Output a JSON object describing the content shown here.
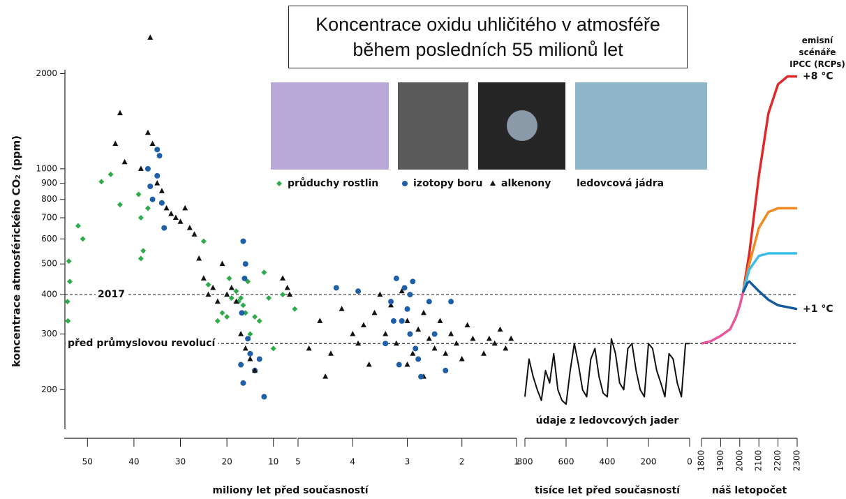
{
  "chart_data": [
    {
      "type": "scatter",
      "title": "Koncentrace oxidu uhličitého v atmosféře během posledních 55 milionů let",
      "y_label": "koncentrace atmosférického CO₂ (ppm)",
      "x_label": "miliony let před současností",
      "log_scale": true,
      "ylim": [
        150,
        3250
      ],
      "yticks": [
        200,
        300,
        400,
        500,
        600,
        700,
        800,
        900,
        1000,
        2000
      ],
      "xlim": [
        55,
        5
      ],
      "xticks": [
        50,
        40,
        30,
        20,
        10
      ],
      "reference_lines": [
        {
          "value": 400,
          "label": "2017"
        },
        {
          "value": 280,
          "label": "před průmyslovou revolucí"
        }
      ],
      "series": [
        {
          "name": "průduchy rostlin",
          "color": "#2eaa4a",
          "marker": "diamond",
          "x": [
            54.3,
            54.2,
            54,
            53.8,
            52,
            51,
            47,
            45,
            43,
            39,
            38.5,
            38.5,
            38,
            37,
            36,
            25,
            24,
            22,
            21,
            20,
            19.5,
            19,
            18,
            17.5,
            17,
            16.5,
            16,
            15.5,
            15,
            14,
            13,
            12,
            11,
            10,
            8,
            5.4
          ],
          "values": [
            380,
            330,
            510,
            440,
            660,
            600,
            910,
            960,
            770,
            830,
            700,
            520,
            550,
            750,
            800,
            590,
            430,
            330,
            350,
            340,
            450,
            390,
            410,
            380,
            390,
            370,
            350,
            440,
            300,
            340,
            330,
            470,
            390,
            270,
            400,
            360
          ]
        },
        {
          "name": "izotopy boru",
          "color": "#1f5fa8",
          "marker": "circle",
          "x": [
            36.5,
            35,
            34.5,
            35,
            34,
            33.5,
            36,
            37,
            16.5,
            16,
            16.2,
            16.8,
            17,
            16.5,
            15.5,
            15,
            14,
            13,
            12
          ],
          "values": [
            880,
            1150,
            1100,
            950,
            780,
            650,
            800,
            1000,
            590,
            500,
            450,
            350,
            240,
            210,
            290,
            260,
            230,
            250,
            190
          ]
        },
        {
          "name": "alkenony",
          "color": "#111111",
          "marker": "triangle",
          "x": [
            36.5,
            43,
            44,
            42,
            38.5,
            37,
            36,
            35,
            34,
            33,
            32,
            31,
            30,
            29,
            28,
            27,
            26,
            25,
            24,
            23,
            22,
            21,
            20,
            19,
            18,
            17,
            16,
            15,
            14,
            8,
            7,
            6.5
          ],
          "values": [
            2600,
            1500,
            1200,
            1050,
            1000,
            1300,
            1200,
            900,
            850,
            750,
            720,
            700,
            680,
            750,
            650,
            620,
            520,
            450,
            400,
            420,
            380,
            500,
            400,
            420,
            380,
            300,
            270,
            250,
            230,
            450,
            420,
            400
          ]
        }
      ]
    },
    {
      "type": "scatter",
      "xlim": [
        5,
        1
      ],
      "xticks": [
        5,
        4,
        3,
        2,
        1
      ],
      "series": [
        {
          "color": "#111111",
          "marker": "triangle",
          "x": [
            4.6,
            4.4,
            4.2,
            4.0,
            3.9,
            3.8,
            3.7,
            3.6,
            3.5,
            3.4,
            3.3,
            3.2,
            3.1,
            3.0,
            2.9,
            2.8,
            2.7,
            2.6,
            2.5,
            2.4,
            2.3,
            2.2,
            2.1,
            2.0,
            1.9,
            1.8,
            1.6,
            1.5,
            1.4,
            1.3,
            1.2,
            1.1,
            4.8,
            4.5,
            3.0,
            2.7
          ],
          "values": [
            330,
            260,
            360,
            300,
            280,
            320,
            240,
            350,
            400,
            300,
            370,
            280,
            410,
            330,
            260,
            310,
            350,
            290,
            270,
            330,
            260,
            300,
            280,
            250,
            320,
            290,
            260,
            290,
            280,
            310,
            270,
            290,
            270,
            220,
            240,
            220
          ]
        },
        {
          "color": "#1f5fa8",
          "marker": "circle",
          "x": [
            4.3,
            3.9,
            3.3,
            3.2,
            3.1,
            3.05,
            3.0,
            2.95,
            2.9,
            2.85,
            2.8,
            2.6,
            2.5,
            2.3,
            2.2,
            3.4,
            3.15,
            2.75,
            3.25,
            2.95
          ],
          "values": [
            420,
            410,
            380,
            450,
            330,
            420,
            360,
            300,
            440,
            270,
            250,
            380,
            300,
            230,
            380,
            280,
            240,
            220,
            330,
            400
          ]
        }
      ]
    },
    {
      "type": "line",
      "x_label": "tisíce let před současností",
      "annotation": "údaje z ledovcových jader",
      "xlim": [
        800,
        0
      ],
      "xticks": [
        800,
        600,
        400,
        200,
        0
      ],
      "series": [
        {
          "name": "ledovcová jádra",
          "color": "#111111",
          "x": [
            800,
            780,
            760,
            740,
            720,
            700,
            680,
            660,
            640,
            620,
            600,
            580,
            560,
            540,
            520,
            500,
            480,
            460,
            440,
            420,
            400,
            380,
            360,
            340,
            320,
            300,
            280,
            260,
            240,
            220,
            200,
            180,
            160,
            140,
            120,
            100,
            80,
            60,
            40,
            20,
            0
          ],
          "values": [
            190,
            250,
            220,
            200,
            185,
            230,
            210,
            260,
            200,
            185,
            180,
            230,
            280,
            240,
            200,
            190,
            250,
            270,
            220,
            195,
            190,
            290,
            260,
            210,
            200,
            270,
            280,
            230,
            200,
            190,
            280,
            270,
            230,
            210,
            190,
            260,
            250,
            210,
            190,
            280,
            280
          ]
        }
      ]
    },
    {
      "type": "line",
      "title": "emisní scénáře IPCC (RCPs)",
      "x_label": "náš letopočet",
      "xlim": [
        1800,
        2300
      ],
      "xticks": [
        1800,
        1900,
        2000,
        2100,
        2200,
        2300
      ],
      "series": [
        {
          "color": "#e8559a",
          "x": [
            1800,
            1850,
            1900,
            1950,
            1980,
            2000,
            2017
          ],
          "values": [
            280,
            285,
            296,
            311,
            339,
            369,
            406
          ]
        },
        {
          "color": "#e02a2a",
          "end_label": "+8 °C",
          "x": [
            2017,
            2050,
            2100,
            2150,
            2200,
            2250,
            2300
          ],
          "values": [
            406,
            540,
            950,
            1500,
            1850,
            1960,
            1960
          ]
        },
        {
          "color": "#f08a1e",
          "x": [
            2017,
            2050,
            2100,
            2150,
            2200,
            2250,
            2300
          ],
          "values": [
            406,
            500,
            650,
            730,
            750,
            750,
            750
          ]
        },
        {
          "color": "#3cbde8",
          "x": [
            2017,
            2050,
            2100,
            2150,
            2200,
            2250,
            2300
          ],
          "values": [
            406,
            480,
            530,
            540,
            540,
            540,
            540
          ]
        },
        {
          "color": "#155a9c",
          "end_label": "+1 °C",
          "x": [
            2017,
            2040,
            2050,
            2100,
            2150,
            2200,
            2300
          ],
          "values": [
            406,
            435,
            440,
            410,
            385,
            370,
            360
          ]
        }
      ]
    }
  ]
}
